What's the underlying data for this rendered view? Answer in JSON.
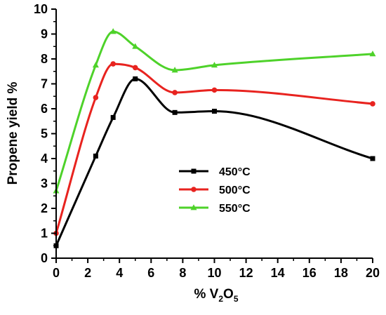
{
  "chart_data": {
    "type": "line",
    "title": "",
    "xlabel": "% V2O5",
    "xlabel_parts": {
      "prefix": "% V",
      "sub1": "2",
      "mid": "O",
      "sub2": "5"
    },
    "ylabel": "Propene yield %",
    "xlim": [
      0,
      20
    ],
    "ylim": [
      0,
      10
    ],
    "xticks": [
      "0",
      "2",
      "4",
      "6",
      "8",
      "10",
      "12",
      "14",
      "16",
      "18",
      "20"
    ],
    "yticks": [
      "0",
      "1",
      "2",
      "3",
      "4",
      "5",
      "6",
      "7",
      "8",
      "9",
      "10"
    ],
    "grid": false,
    "legend_position": "center-left",
    "smooth": true,
    "series": [
      {
        "name": "450°C",
        "color": "#000000",
        "marker": "square",
        "x": [
          0,
          2.5,
          3.6,
          5,
          7.5,
          10,
          20
        ],
        "y": [
          0.5,
          4.1,
          5.65,
          7.2,
          5.85,
          5.9,
          4.0
        ]
      },
      {
        "name": "500°C",
        "color": "#e8231f",
        "marker": "circle",
        "x": [
          0,
          2.5,
          3.6,
          5,
          7.5,
          10,
          20
        ],
        "y": [
          1.0,
          6.45,
          7.8,
          7.65,
          6.65,
          6.75,
          6.2
        ]
      },
      {
        "name": "550°C",
        "color": "#4ed22a",
        "marker": "triangle",
        "x": [
          0,
          2.5,
          3.6,
          5,
          7.5,
          10,
          20
        ],
        "y": [
          2.7,
          7.75,
          9.1,
          8.5,
          7.55,
          7.75,
          8.2
        ]
      }
    ]
  }
}
